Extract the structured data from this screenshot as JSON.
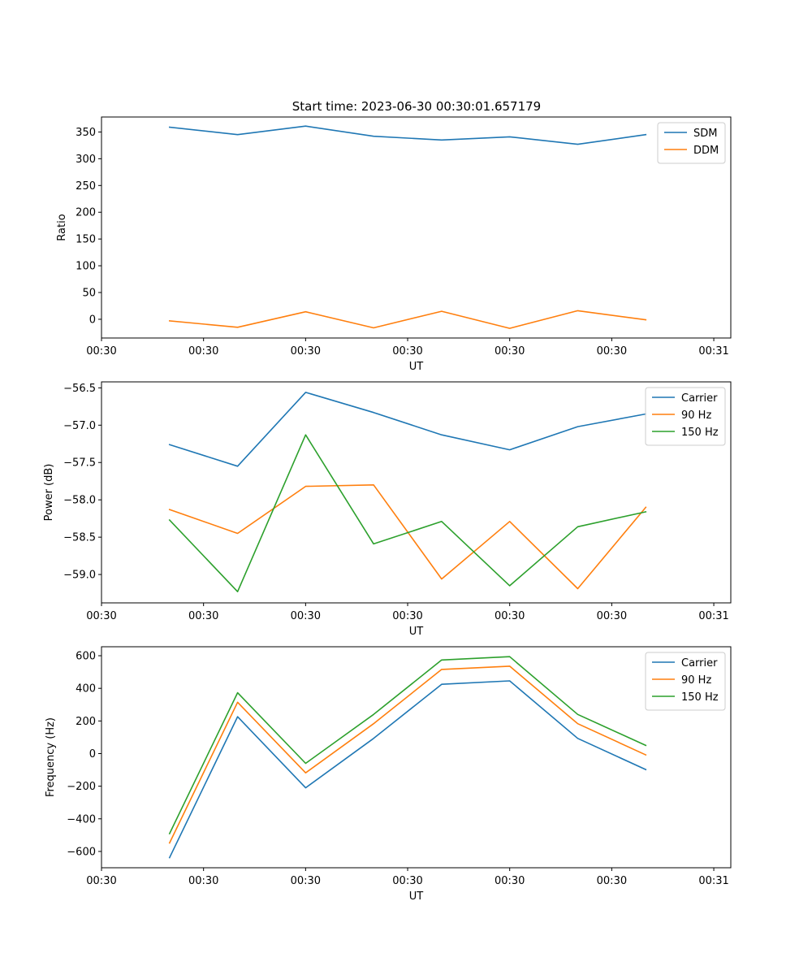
{
  "title": "Start time: 2023-06-30 00:30:01.657179",
  "colors": {
    "blue": "#1f77b4",
    "orange": "#ff7f0e",
    "green": "#2ca02c"
  },
  "chart_data": [
    {
      "type": "line",
      "title": "Start time: 2023-06-30 00:30:01.657179",
      "xlabel": "UT",
      "ylabel": "Ratio",
      "x": [
        1,
        2,
        3,
        4,
        5,
        6,
        7,
        8
      ],
      "xlim": [
        0,
        9.25
      ],
      "x_ticks": [
        {
          "v": 0,
          "label": "00:30"
        },
        {
          "v": 1.5,
          "label": "00:30"
        },
        {
          "v": 3,
          "label": "00:30"
        },
        {
          "v": 4.5,
          "label": "00:30"
        },
        {
          "v": 6,
          "label": "00:30"
        },
        {
          "v": 7.5,
          "label": "00:30"
        },
        {
          "v": 9,
          "label": "00:31"
        }
      ],
      "ylim": [
        -35,
        378
      ],
      "y_ticks": [
        {
          "v": 0,
          "label": "0"
        },
        {
          "v": 50,
          "label": "50"
        },
        {
          "v": 100,
          "label": "100"
        },
        {
          "v": 150,
          "label": "150"
        },
        {
          "v": 200,
          "label": "200"
        },
        {
          "v": 250,
          "label": "250"
        },
        {
          "v": 300,
          "label": "300"
        },
        {
          "v": 350,
          "label": "350"
        }
      ],
      "legend": "top-right",
      "series": [
        {
          "name": "SDM",
          "color": "#1f77b4",
          "values": [
            359,
            345,
            361,
            342,
            335,
            341,
            327,
            345
          ]
        },
        {
          "name": "DDM",
          "color": "#ff7f0e",
          "values": [
            -3,
            -15,
            14,
            -16,
            15,
            -17,
            16,
            -1
          ]
        }
      ]
    },
    {
      "type": "line",
      "title": "",
      "xlabel": "UT",
      "ylabel": "Power (dB)",
      "x": [
        1,
        2,
        3,
        4,
        5,
        6,
        7,
        8
      ],
      "xlim": [
        0,
        9.25
      ],
      "x_ticks": [
        {
          "v": 0,
          "label": "00:30"
        },
        {
          "v": 1.5,
          "label": "00:30"
        },
        {
          "v": 3,
          "label": "00:30"
        },
        {
          "v": 4.5,
          "label": "00:30"
        },
        {
          "v": 6,
          "label": "00:30"
        },
        {
          "v": 7.5,
          "label": "00:30"
        },
        {
          "v": 9,
          "label": "00:31"
        }
      ],
      "ylim": [
        -59.38,
        -56.42
      ],
      "y_ticks": [
        {
          "v": -59.0,
          "label": "−59.0"
        },
        {
          "v": -58.5,
          "label": "−58.5"
        },
        {
          "v": -58.0,
          "label": "−58.0"
        },
        {
          "v": -57.5,
          "label": "−57.5"
        },
        {
          "v": -57.0,
          "label": "−57.0"
        },
        {
          "v": -56.5,
          "label": "−56.5"
        }
      ],
      "legend": "top-right",
      "series": [
        {
          "name": "Carrier",
          "color": "#1f77b4",
          "values": [
            -57.26,
            -57.55,
            -56.56,
            -56.83,
            -57.13,
            -57.33,
            -57.02,
            -56.85
          ]
        },
        {
          "name": "90 Hz",
          "color": "#ff7f0e",
          "values": [
            -58.13,
            -58.45,
            -57.82,
            -57.8,
            -59.06,
            -58.29,
            -59.19,
            -58.1
          ]
        },
        {
          "name": "150 Hz",
          "color": "#2ca02c",
          "values": [
            -58.27,
            -59.23,
            -57.13,
            -58.59,
            -58.29,
            -59.15,
            -58.36,
            -58.16
          ]
        }
      ]
    },
    {
      "type": "line",
      "title": "",
      "xlabel": "UT",
      "ylabel": "Frequency (Hz)",
      "x": [
        1,
        2,
        3,
        4,
        5,
        6,
        7,
        8
      ],
      "xlim": [
        0,
        9.25
      ],
      "x_ticks": [
        {
          "v": 0,
          "label": "00:30"
        },
        {
          "v": 1.5,
          "label": "00:30"
        },
        {
          "v": 3,
          "label": "00:30"
        },
        {
          "v": 4.5,
          "label": "00:30"
        },
        {
          "v": 6,
          "label": "00:30"
        },
        {
          "v": 7.5,
          "label": "00:30"
        },
        {
          "v": 9,
          "label": "00:31"
        }
      ],
      "ylim": [
        -700,
        655
      ],
      "y_ticks": [
        {
          "v": -600,
          "label": "−600"
        },
        {
          "v": -400,
          "label": "−400"
        },
        {
          "v": -200,
          "label": "−200"
        },
        {
          "v": 0,
          "label": "0"
        },
        {
          "v": 200,
          "label": "200"
        },
        {
          "v": 400,
          "label": "400"
        },
        {
          "v": 600,
          "label": "600"
        }
      ],
      "legend": "top-right",
      "series": [
        {
          "name": "Carrier",
          "color": "#1f77b4",
          "values": [
            -638,
            226,
            -210,
            93,
            425,
            446,
            93,
            -98
          ]
        },
        {
          "name": "90 Hz",
          "color": "#ff7f0e",
          "values": [
            -548,
            315,
            -118,
            183,
            516,
            536,
            183,
            -8
          ]
        },
        {
          "name": "150 Hz",
          "color": "#2ca02c",
          "values": [
            -491,
            373,
            -60,
            240,
            574,
            594,
            240,
            50
          ]
        }
      ]
    }
  ]
}
